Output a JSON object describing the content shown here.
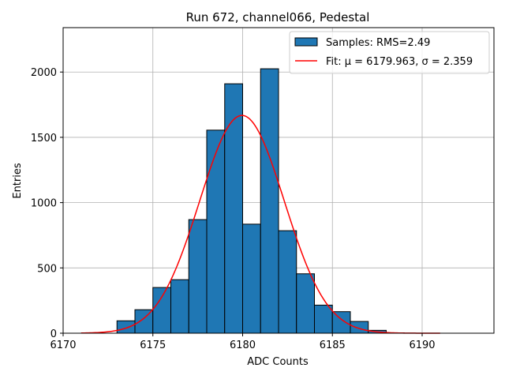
{
  "chart_data": {
    "type": "bar",
    "title": "Run 672, channel066, Pedestal",
    "xlabel": "ADC Counts",
    "ylabel": "Entries",
    "xlim": [
      6170,
      6194
    ],
    "ylim": [
      0,
      2340
    ],
    "xticks": [
      6170,
      6175,
      6180,
      6185,
      6190
    ],
    "yticks": [
      0,
      500,
      1000,
      1500,
      2000
    ],
    "grid": true,
    "legend_position": "top-right",
    "bin_width": 1,
    "bins": [
      {
        "x": 6173,
        "value": 95
      },
      {
        "x": 6174,
        "value": 180
      },
      {
        "x": 6175,
        "value": 350
      },
      {
        "x": 6176,
        "value": 410
      },
      {
        "x": 6177,
        "value": 870
      },
      {
        "x": 6178,
        "value": 1555
      },
      {
        "x": 6179,
        "value": 1910
      },
      {
        "x": 6180,
        "value": 835
      },
      {
        "x": 6181,
        "value": 2025
      },
      {
        "x": 6182,
        "value": 785
      },
      {
        "x": 6183,
        "value": 455
      },
      {
        "x": 6184,
        "value": 215
      },
      {
        "x": 6185,
        "value": 165
      },
      {
        "x": 6186,
        "value": 90
      },
      {
        "x": 6187,
        "value": 22
      },
      {
        "x": 6188,
        "value": 3
      }
    ],
    "fit": {
      "mu": 6179.963,
      "sigma": 2.359,
      "amplitude": 1668,
      "x_range": [
        6171,
        6191
      ]
    },
    "series": [
      {
        "name": "Samples: RMS=2.49",
        "kind": "histogram",
        "color": "#1f77b4"
      },
      {
        "name": "Fit: μ = 6179.963, σ = 2.359",
        "kind": "line",
        "color": "#ff0000"
      }
    ]
  }
}
